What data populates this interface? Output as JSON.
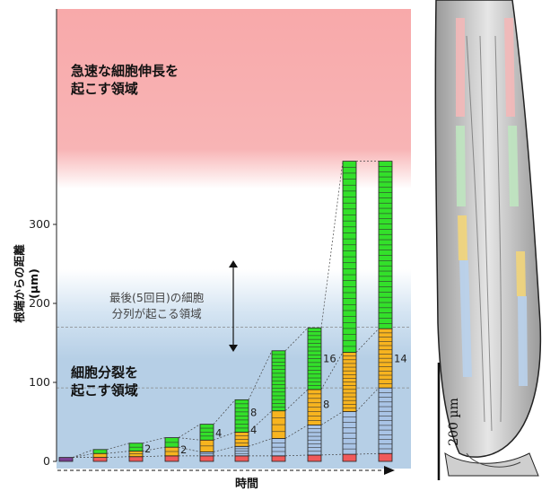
{
  "zones": {
    "elongation": [
      "急速な細胞伸長を",
      "起こす領域"
    ],
    "division": [
      "細胞分裂を",
      "起こす領域"
    ],
    "last_division": [
      "最後(5回目)の細胞",
      "分列が起こる領域"
    ]
  },
  "axis": {
    "ylabel_line1": "根端からの距離",
    "ylabel_line2": "(µm)",
    "xlabel": "時間",
    "ticks": [
      "0",
      "100",
      "200",
      "300"
    ],
    "ymax": 380
  },
  "scale_bar": {
    "label": "200 µm"
  },
  "colors": {
    "elongation_zone": "#f8a9aa",
    "division_zone": "#b6cfe6",
    "purple": "#7b3f91",
    "red": "#f05a5a",
    "orange": "#f7b41f",
    "blue": "#a9c4e6",
    "green": "#33e02a"
  },
  "chart_data": {
    "type": "stacked-cell-columns",
    "ylabel": "根端からの距離 (µm)",
    "xlabel": "時間",
    "ylim": [
      0,
      380
    ],
    "columns": [
      {
        "blocks": [
          {
            "color": "purple",
            "h": 5,
            "n": 1
          }
        ]
      },
      {
        "blocks": [
          {
            "color": "red",
            "h": 5,
            "n": 1
          },
          {
            "color": "orange",
            "h": 5,
            "n": 1
          },
          {
            "color": "green",
            "h": 5,
            "n": 1
          }
        ]
      },
      {
        "blocks": [
          {
            "color": "red",
            "h": 6,
            "n": 1
          },
          {
            "color": "orange",
            "h": 7,
            "n": 2
          },
          {
            "color": "green",
            "h": 10,
            "n": 2
          }
        ],
        "label": "2"
      },
      {
        "blocks": [
          {
            "color": "red",
            "h": 7,
            "n": 1
          },
          {
            "color": "orange",
            "h": 11,
            "n": 2
          },
          {
            "color": "green",
            "h": 12,
            "n": 2
          }
        ],
        "label": "2"
      },
      {
        "blocks": [
          {
            "color": "red",
            "h": 7,
            "n": 1
          },
          {
            "color": "blue",
            "h": 5,
            "n": 2
          },
          {
            "color": "orange",
            "h": 15,
            "n": 2
          },
          {
            "color": "green",
            "h": 20,
            "n": 4
          }
        ],
        "label": "4"
      },
      {
        "blocks": [
          {
            "color": "red",
            "h": 7,
            "n": 1
          },
          {
            "color": "blue",
            "h": 12,
            "n": 4
          },
          {
            "color": "orange",
            "h": 18,
            "n": 4
          },
          {
            "color": "green",
            "h": 41,
            "n": 8
          }
        ],
        "label": "8"
      },
      {
        "blocks": [
          {
            "color": "red",
            "h": 7,
            "n": 1
          },
          {
            "color": "blue",
            "h": 22,
            "n": 4
          },
          {
            "color": "orange",
            "h": 35,
            "n": 4
          },
          {
            "color": "green",
            "h": 76,
            "n": 16
          }
        ]
      },
      {
        "blocks": [
          {
            "color": "red",
            "h": 8,
            "n": 1
          },
          {
            "color": "blue",
            "h": 38,
            "n": 8
          },
          {
            "color": "orange",
            "h": 45,
            "n": 8
          },
          {
            "color": "green",
            "h": 78,
            "n": 16
          }
        ],
        "label": "8",
        "label2": "16"
      },
      {
        "blocks": [
          {
            "color": "red",
            "h": 9,
            "n": 1
          },
          {
            "color": "blue",
            "h": 54,
            "n": 8
          },
          {
            "color": "orange",
            "h": 75,
            "n": 16
          },
          {
            "color": "green",
            "h": 242,
            "n": 32
          }
        ]
      },
      {
        "blocks": [
          {
            "color": "red",
            "h": 10,
            "n": 1
          },
          {
            "color": "blue",
            "h": 83,
            "n": 14
          },
          {
            "color": "orange",
            "h": 75,
            "n": 14
          },
          {
            "color": "green",
            "h": 212,
            "n": 32
          }
        ],
        "label": "14"
      }
    ],
    "label_values": [
      "2",
      "2",
      "4",
      "8",
      "4",
      "8",
      "16",
      "14"
    ],
    "reference_lines": [
      170,
      93
    ]
  }
}
